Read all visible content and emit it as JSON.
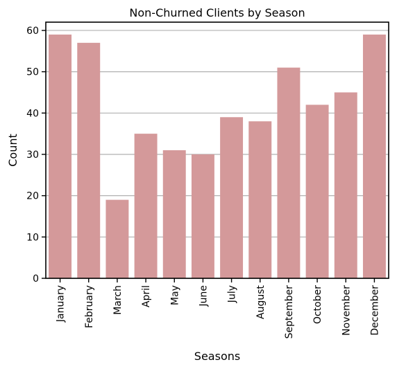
{
  "chart_data": {
    "type": "bar",
    "title": "Non-Churned Clients by Season",
    "xlabel": "Seasons",
    "ylabel": "Count",
    "categories": [
      "January",
      "February",
      "March",
      "April",
      "May",
      "June",
      "July",
      "August",
      "September",
      "October",
      "November",
      "December"
    ],
    "values": [
      59,
      57,
      19,
      35,
      31,
      30,
      39,
      38,
      51,
      42,
      45,
      59
    ],
    "ylim": [
      0,
      62
    ],
    "yticks": [
      0,
      10,
      20,
      30,
      40,
      50,
      60
    ],
    "grid": "y",
    "legend": "none",
    "bar_color": "#d4999a",
    "grid_color": "#b0b0b0"
  }
}
